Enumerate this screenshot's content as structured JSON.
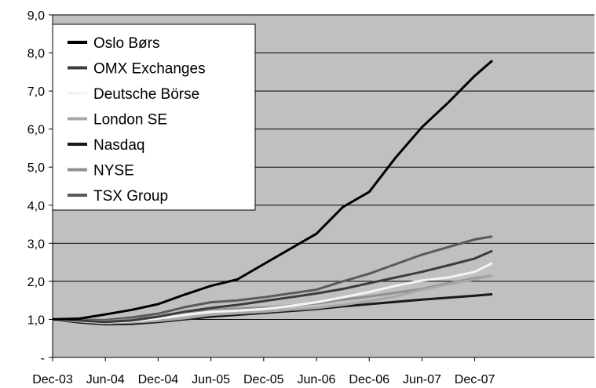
{
  "chart_data": {
    "type": "line",
    "title": "",
    "xlabel": "",
    "ylabel": "",
    "x_ticks": [
      "Dec-03",
      "Jun-04",
      "Dec-04",
      "Jun-05",
      "Dec-05",
      "Jun-06",
      "Dec-06",
      "Jun-07",
      "Dec-07"
    ],
    "y_ticks": [
      "-",
      "1,0",
      "2,0",
      "3,0",
      "4,0",
      "5,0",
      "6,0",
      "7,0",
      "8,0",
      "9,0"
    ],
    "ylim": [
      0,
      9
    ],
    "grid": true,
    "legend_position": "top-left",
    "plot_background": "#c0c0c0",
    "series": [
      {
        "name": "Oslo Børs",
        "color": "#000000",
        "points": [
          [
            "Dec-03",
            1.0
          ],
          [
            "Mar-04",
            1.02
          ],
          [
            "Jun-04",
            1.13
          ],
          [
            "Sep-04",
            1.25
          ],
          [
            "Dec-04",
            1.4
          ],
          [
            "Mar-05",
            1.65
          ],
          [
            "Jun-05",
            1.88
          ],
          [
            "Sep-05",
            2.05
          ],
          [
            "Dec-05",
            2.45
          ],
          [
            "Mar-06",
            2.85
          ],
          [
            "Jun-06",
            3.25
          ],
          [
            "Sep-06",
            3.95
          ],
          [
            "Dec-06",
            4.35
          ],
          [
            "Mar-07",
            5.25
          ],
          [
            "Jun-07",
            6.05
          ],
          [
            "Sep-07",
            6.7
          ],
          [
            "Dec-07",
            7.4
          ],
          [
            "Feb-08",
            7.8
          ]
        ]
      },
      {
        "name": "OMX Exchanges",
        "color": "#3c3c3c",
        "points": [
          [
            "Dec-03",
            1.0
          ],
          [
            "Mar-04",
            0.97
          ],
          [
            "Jun-04",
            0.93
          ],
          [
            "Sep-04",
            0.97
          ],
          [
            "Dec-04",
            1.07
          ],
          [
            "Mar-05",
            1.2
          ],
          [
            "Jun-05",
            1.3
          ],
          [
            "Sep-05",
            1.38
          ],
          [
            "Dec-05",
            1.48
          ],
          [
            "Mar-06",
            1.58
          ],
          [
            "Jun-06",
            1.68
          ],
          [
            "Sep-06",
            1.8
          ],
          [
            "Dec-06",
            1.95
          ],
          [
            "Mar-07",
            2.1
          ],
          [
            "Jun-07",
            2.25
          ],
          [
            "Sep-07",
            2.42
          ],
          [
            "Dec-07",
            2.6
          ],
          [
            "Feb-08",
            2.8
          ]
        ]
      },
      {
        "name": "Deutsche Börse",
        "color": "#f4f4f4",
        "points": [
          [
            "Dec-03",
            1.0
          ],
          [
            "Mar-04",
            0.96
          ],
          [
            "Jun-04",
            0.92
          ],
          [
            "Sep-04",
            0.95
          ],
          [
            "Dec-04",
            1.02
          ],
          [
            "Mar-05",
            1.12
          ],
          [
            "Jun-05",
            1.2
          ],
          [
            "Sep-05",
            1.23
          ],
          [
            "Dec-05",
            1.27
          ],
          [
            "Mar-06",
            1.35
          ],
          [
            "Jun-06",
            1.45
          ],
          [
            "Sep-06",
            1.58
          ],
          [
            "Dec-06",
            1.72
          ],
          [
            "Mar-07",
            1.88
          ],
          [
            "Jun-07",
            2.02
          ],
          [
            "Sep-07",
            2.1
          ],
          [
            "Dec-07",
            2.25
          ],
          [
            "Feb-08",
            2.48
          ]
        ]
      },
      {
        "name": "London SE",
        "color": "#a8a8a8",
        "points": [
          [
            "Dec-03",
            1.0
          ],
          [
            "Mar-04",
            0.95
          ],
          [
            "Jun-04",
            0.9
          ],
          [
            "Sep-04",
            0.92
          ],
          [
            "Dec-04",
            0.96
          ],
          [
            "Mar-05",
            1.03
          ],
          [
            "Jun-05",
            1.12
          ],
          [
            "Sep-05",
            1.16
          ],
          [
            "Dec-05",
            1.2
          ],
          [
            "Mar-06",
            1.25
          ],
          [
            "Jun-06",
            1.3
          ],
          [
            "Sep-06",
            1.38
          ],
          [
            "Dec-06",
            1.48
          ],
          [
            "Mar-07",
            1.6
          ],
          [
            "Jun-07",
            1.78
          ],
          [
            "Sep-07",
            1.92
          ],
          [
            "Dec-07",
            2.05
          ],
          [
            "Feb-08",
            2.15
          ]
        ]
      },
      {
        "name": "Nasdaq",
        "color": "#1a1a1a",
        "points": [
          [
            "Dec-03",
            1.0
          ],
          [
            "Mar-04",
            0.92
          ],
          [
            "Jun-04",
            0.87
          ],
          [
            "Sep-04",
            0.88
          ],
          [
            "Dec-04",
            0.93
          ],
          [
            "Mar-05",
            1.0
          ],
          [
            "Jun-05",
            1.07
          ],
          [
            "Sep-05",
            1.12
          ],
          [
            "Dec-05",
            1.17
          ],
          [
            "Mar-06",
            1.22
          ],
          [
            "Jun-06",
            1.27
          ],
          [
            "Sep-06",
            1.34
          ],
          [
            "Dec-06",
            1.4
          ],
          [
            "Mar-07",
            1.46
          ],
          [
            "Jun-07",
            1.52
          ],
          [
            "Sep-07",
            1.57
          ],
          [
            "Dec-07",
            1.62
          ],
          [
            "Feb-08",
            1.66
          ]
        ]
      },
      {
        "name": "NYSE",
        "color": "#909090",
        "points": [
          [
            "Dec-03",
            1.0
          ],
          [
            "Mar-04",
            0.97
          ],
          [
            "Jun-04",
            0.95
          ],
          [
            "Sep-04",
            1.0
          ],
          [
            "Dec-04",
            1.07
          ],
          [
            "Mar-05",
            1.15
          ],
          [
            "Jun-05",
            1.25
          ],
          [
            "Sep-05",
            1.28
          ],
          [
            "Dec-05",
            1.31
          ],
          [
            "Mar-06",
            1.36
          ],
          [
            "Jun-06",
            1.42
          ],
          [
            "Sep-06",
            1.52
          ],
          [
            "Dec-06",
            1.6
          ],
          [
            "Mar-07",
            1.7
          ],
          [
            "Jun-07",
            1.8
          ],
          [
            "Sep-07",
            1.95
          ],
          [
            "Dec-07",
            2.08
          ],
          [
            "Feb-08",
            2.15
          ]
        ]
      },
      {
        "name": "TSX Group",
        "color": "#5a5a5a",
        "points": [
          [
            "Dec-03",
            1.0
          ],
          [
            "Mar-04",
            0.99
          ],
          [
            "Jun-04",
            0.98
          ],
          [
            "Sep-04",
            1.05
          ],
          [
            "Dec-04",
            1.15
          ],
          [
            "Mar-05",
            1.32
          ],
          [
            "Jun-05",
            1.45
          ],
          [
            "Sep-05",
            1.5
          ],
          [
            "Dec-05",
            1.58
          ],
          [
            "Mar-06",
            1.68
          ],
          [
            "Jun-06",
            1.78
          ],
          [
            "Sep-06",
            2.0
          ],
          [
            "Dec-06",
            2.2
          ],
          [
            "Mar-07",
            2.45
          ],
          [
            "Jun-07",
            2.7
          ],
          [
            "Sep-07",
            2.9
          ],
          [
            "Dec-07",
            3.1
          ],
          [
            "Feb-08",
            3.18
          ]
        ]
      }
    ]
  }
}
